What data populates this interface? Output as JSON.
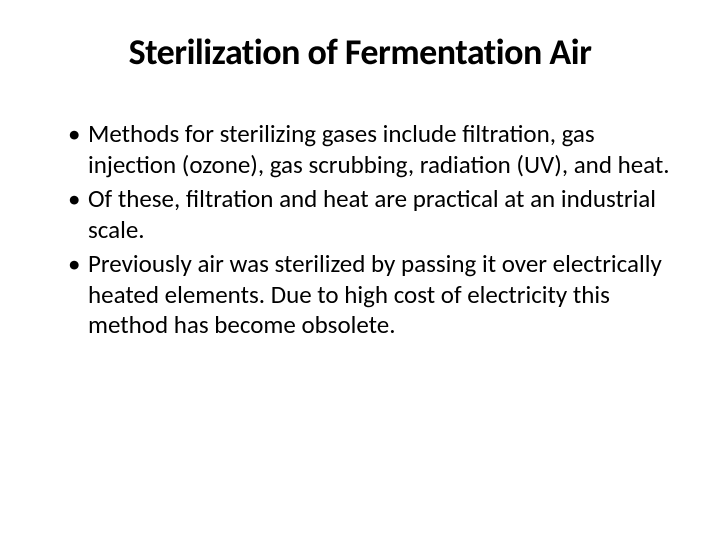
{
  "slide": {
    "title": "Sterilization of Fermentation Air",
    "bullets": [
      "Methods for sterilizing gases include filtration, gas injection (ozone), gas scrubbing, radiation (UV), and heat.",
      "Of these, filtration and heat are practical at an industrial scale.",
      "Previously air was sterilized by passing it over electrically heated elements. Due to high cost of electricity this method has become obsolete."
    ],
    "styling": {
      "background_color": "#ffffff",
      "title_color": "#000000",
      "title_fontsize": 36,
      "title_fontweight": 700,
      "body_color": "#000000",
      "body_fontsize": 25,
      "font_family": "Calibri"
    }
  }
}
